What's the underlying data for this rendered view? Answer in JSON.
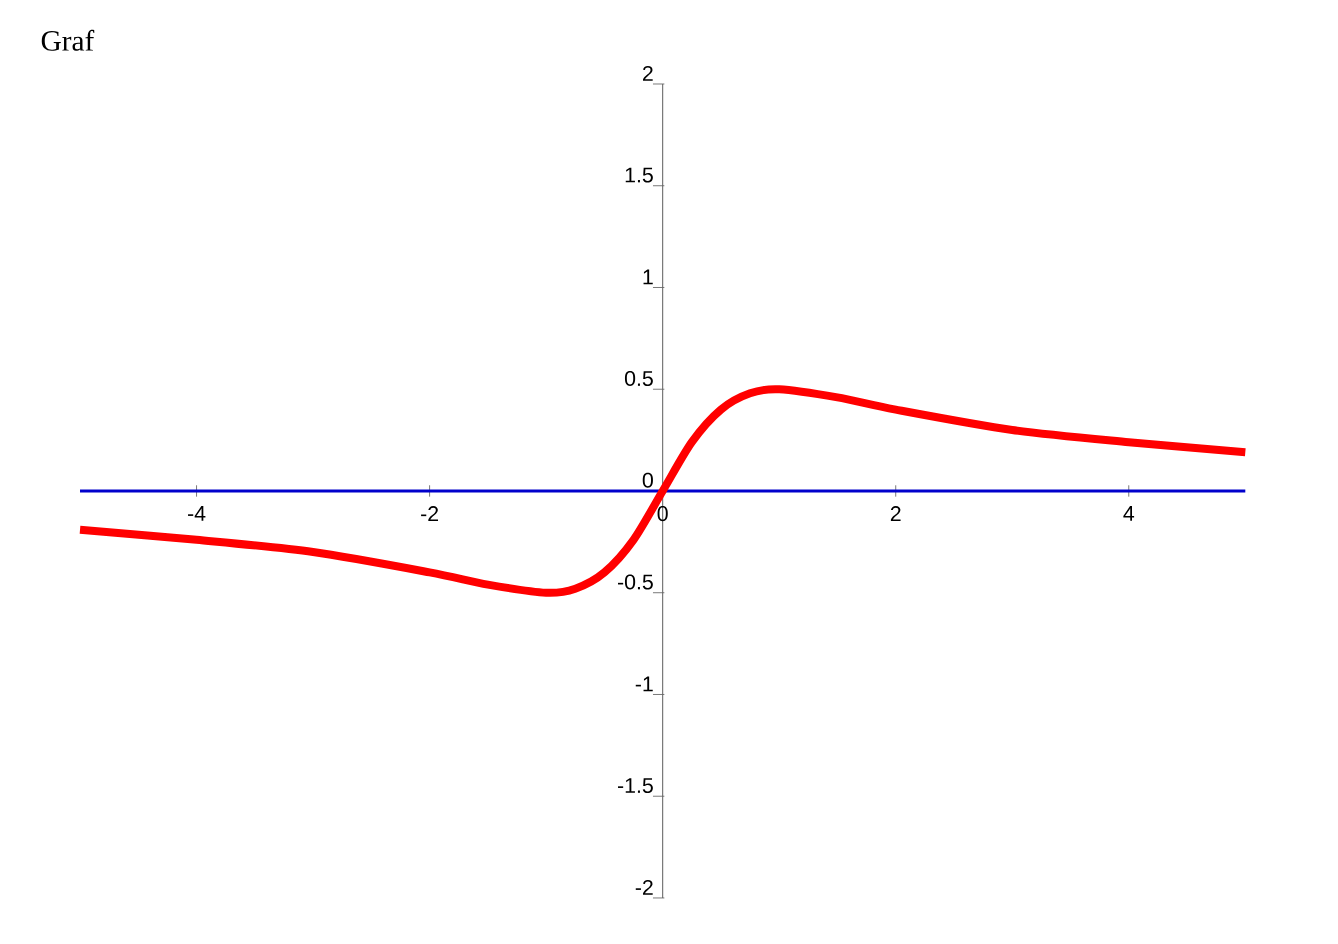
{
  "chart_data": {
    "type": "line",
    "title": "Graf",
    "x": [
      -5,
      -4,
      -3,
      -2,
      -1.5,
      -1,
      -0.75,
      -0.5,
      -0.25,
      0,
      0.25,
      0.5,
      0.75,
      1,
      1.5,
      2,
      3,
      4,
      5
    ],
    "series": [
      {
        "color": "#ff0000",
        "values": [
          -0.19,
          -0.24,
          -0.3,
          -0.4,
          -0.46,
          -0.5,
          -0.48,
          -0.4,
          -0.24,
          0,
          0.24,
          0.4,
          0.48,
          0.5,
          0.46,
          0.4,
          0.3,
          0.24,
          0.19
        ]
      }
    ],
    "xlim": [
      -5,
      5
    ],
    "ylim": [
      -2,
      2
    ],
    "xticks": [
      -4,
      -2,
      0,
      2,
      4
    ],
    "yticks": [
      -2,
      -1.5,
      -1,
      -0.5,
      0,
      0.5,
      1,
      1.5,
      2
    ],
    "grid": false,
    "marker": "none",
    "line_style": "solid"
  }
}
